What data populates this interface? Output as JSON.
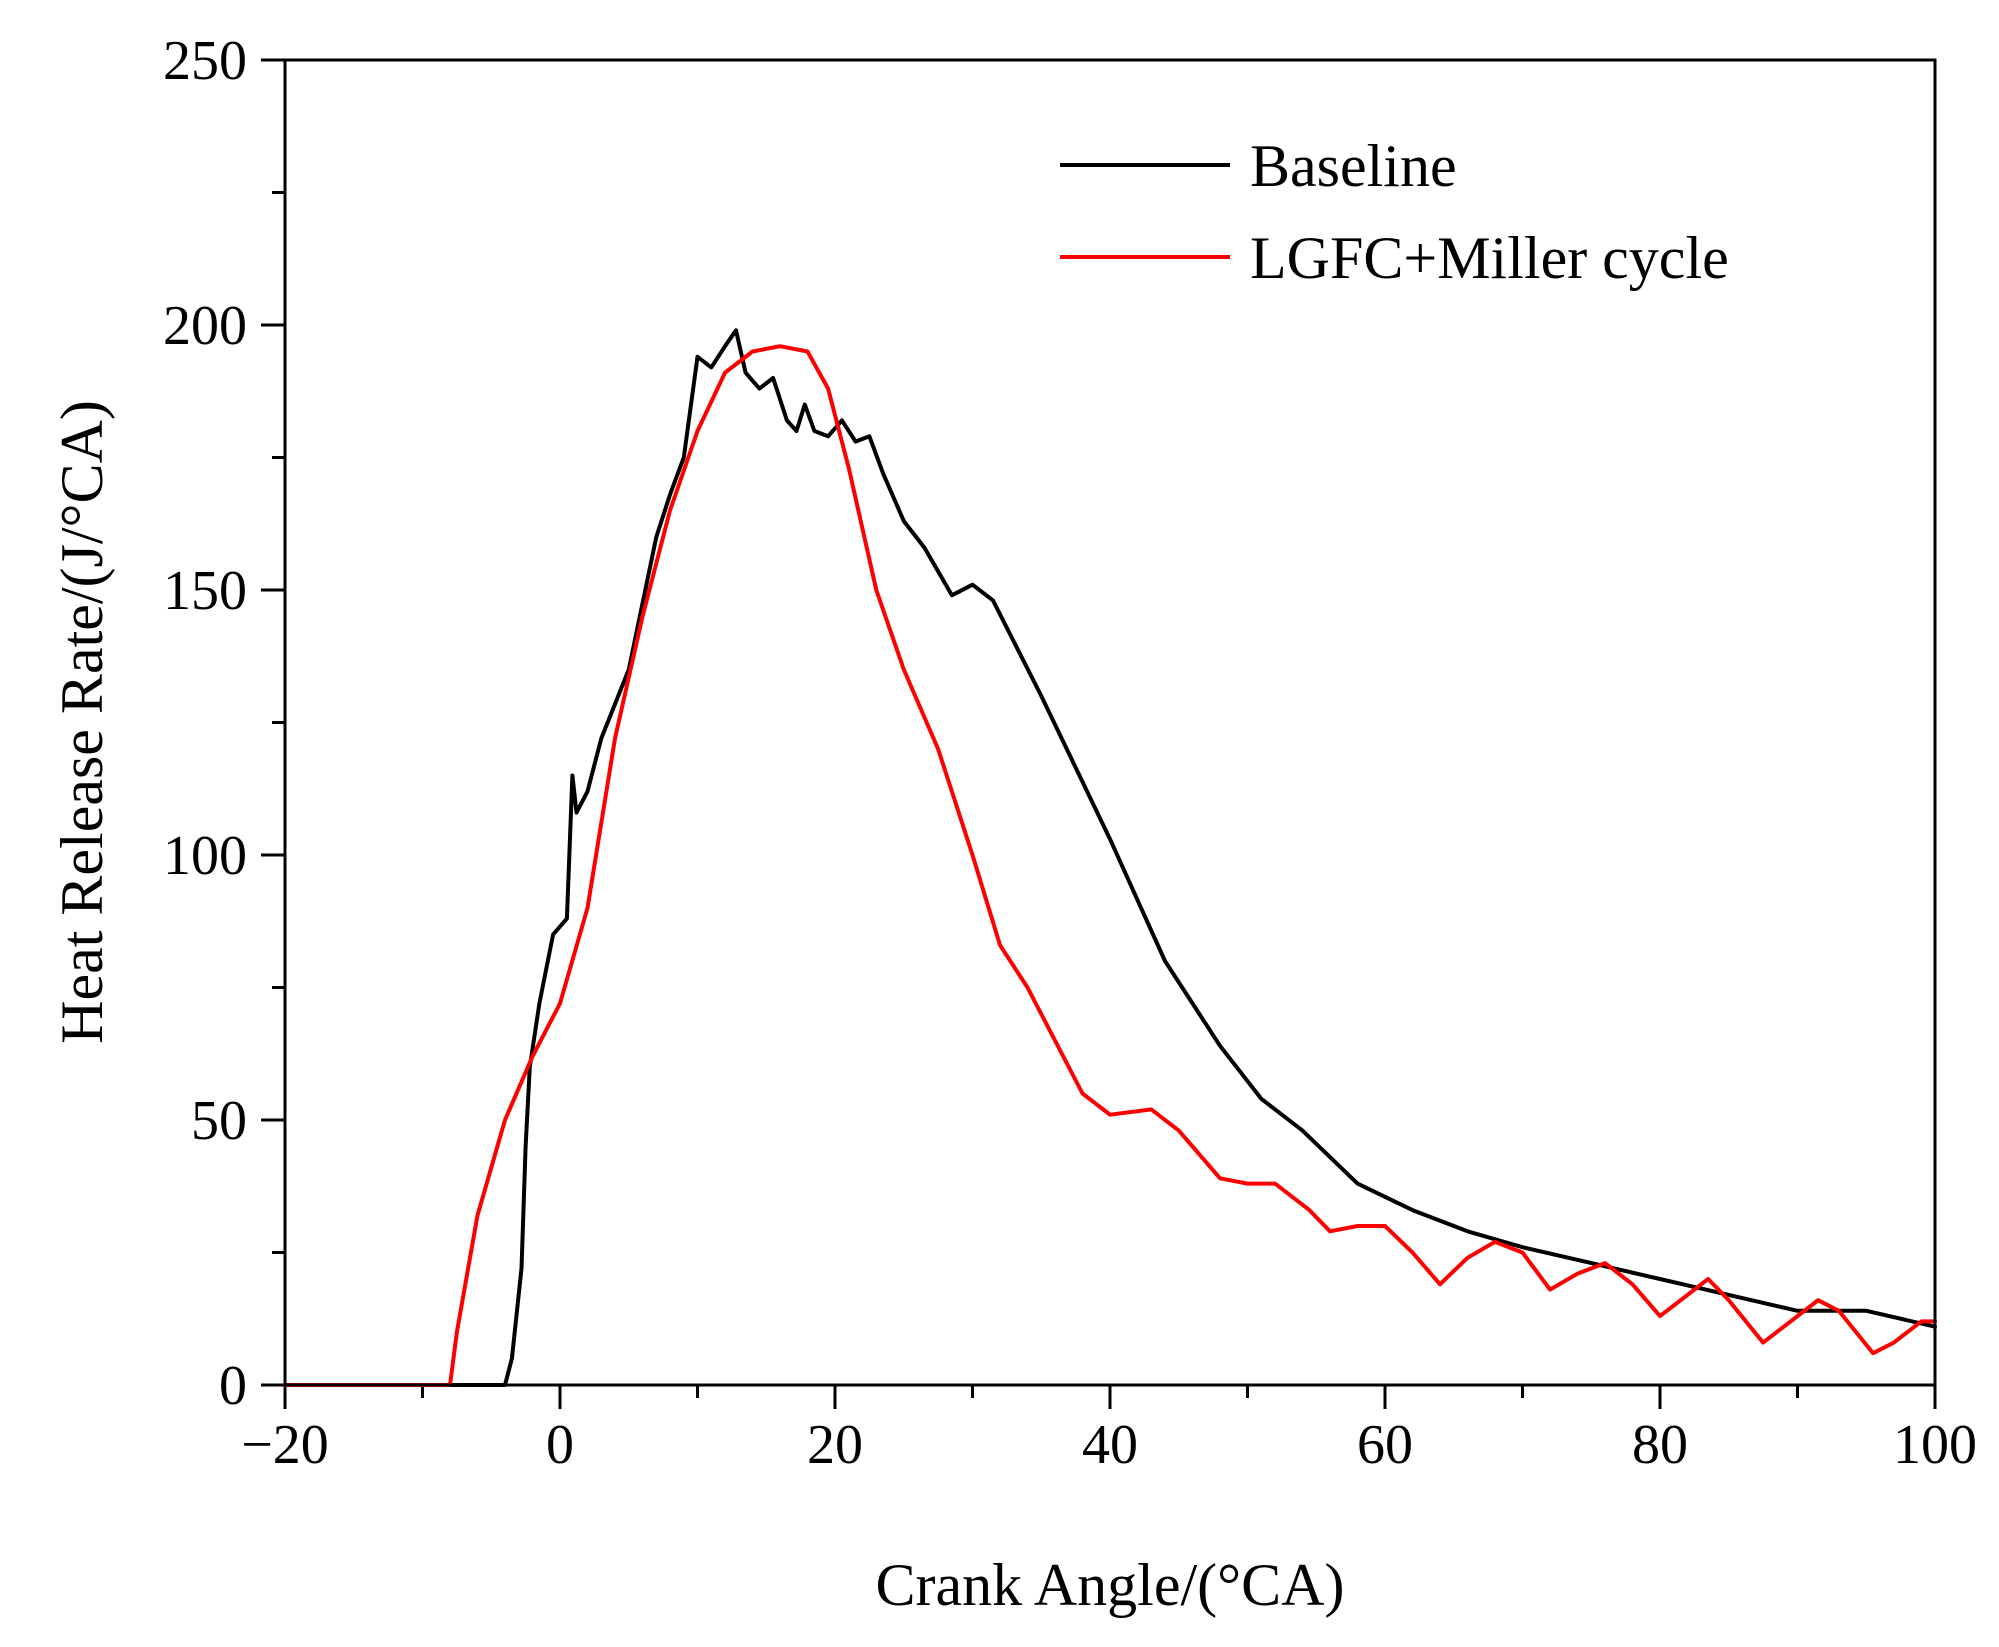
{
  "chart_data": {
    "type": "line",
    "title": "",
    "xlabel": "Crank Angle/(°CA)",
    "ylabel": "Heat Release Rate/(J/°CA)",
    "xlim": [
      -20,
      100
    ],
    "ylim": [
      0,
      250
    ],
    "x_major_ticks": [
      -20,
      0,
      20,
      40,
      60,
      80,
      100
    ],
    "x_tick_labels": [
      "−20",
      "0",
      "20",
      "40",
      "60",
      "80",
      "100"
    ],
    "y_major_ticks": [
      0,
      50,
      100,
      150,
      200,
      250
    ],
    "y_tick_labels": [
      "0",
      "50",
      "100",
      "150",
      "200",
      "250"
    ],
    "grid": false,
    "legend_position": "top-right",
    "series": [
      {
        "name": "Baseline",
        "color": "#000000",
        "points": [
          [
            -20,
            0
          ],
          [
            -14,
            0
          ],
          [
            -4,
            0
          ],
          [
            -3.5,
            5
          ],
          [
            -2.8,
            22
          ],
          [
            -2.5,
            45
          ],
          [
            -2.2,
            60
          ],
          [
            -1.5,
            72
          ],
          [
            -0.5,
            85
          ],
          [
            0.5,
            88
          ],
          [
            0.9,
            115
          ],
          [
            1.2,
            108
          ],
          [
            2,
            112
          ],
          [
            3,
            122
          ],
          [
            5,
            135
          ],
          [
            7,
            160
          ],
          [
            8,
            168
          ],
          [
            9,
            175
          ],
          [
            10,
            194
          ],
          [
            11,
            192
          ],
          [
            12,
            196
          ],
          [
            12.8,
            199
          ],
          [
            13.5,
            191
          ],
          [
            14.5,
            188
          ],
          [
            15.5,
            190
          ],
          [
            16.5,
            182
          ],
          [
            17.2,
            180
          ],
          [
            17.8,
            185
          ],
          [
            18.5,
            180
          ],
          [
            19.5,
            179
          ],
          [
            20.5,
            182
          ],
          [
            21.5,
            178
          ],
          [
            22.5,
            179
          ],
          [
            23.5,
            172
          ],
          [
            25,
            163
          ],
          [
            26.5,
            158
          ],
          [
            28.5,
            149
          ],
          [
            30,
            151
          ],
          [
            31.5,
            148
          ],
          [
            35,
            130
          ],
          [
            40,
            103
          ],
          [
            44,
            80
          ],
          [
            48,
            64
          ],
          [
            51,
            54
          ],
          [
            54,
            48
          ],
          [
            58,
            38
          ],
          [
            62,
            33
          ],
          [
            66,
            29
          ],
          [
            70,
            26
          ],
          [
            75,
            23
          ],
          [
            80,
            20
          ],
          [
            85,
            17
          ],
          [
            90,
            14
          ],
          [
            95,
            14
          ],
          [
            100,
            11
          ]
        ]
      },
      {
        "name": "LGFC+Miller cycle",
        "color": "#ff0000",
        "points": [
          [
            -20,
            0
          ],
          [
            -8,
            0
          ],
          [
            -7.5,
            10
          ],
          [
            -6,
            32
          ],
          [
            -4,
            50
          ],
          [
            -2,
            62
          ],
          [
            0,
            72
          ],
          [
            2,
            90
          ],
          [
            4,
            122
          ],
          [
            6,
            145
          ],
          [
            8,
            165
          ],
          [
            10,
            180
          ],
          [
            12,
            191
          ],
          [
            14,
            195
          ],
          [
            16,
            196
          ],
          [
            18,
            195
          ],
          [
            19.5,
            188
          ],
          [
            21,
            173
          ],
          [
            23,
            150
          ],
          [
            25,
            135
          ],
          [
            27.5,
            120
          ],
          [
            30,
            100
          ],
          [
            32,
            83
          ],
          [
            34,
            75
          ],
          [
            36,
            65
          ],
          [
            38,
            55
          ],
          [
            40,
            51
          ],
          [
            43,
            52
          ],
          [
            45,
            48
          ],
          [
            48,
            39
          ],
          [
            50,
            38
          ],
          [
            52,
            38
          ],
          [
            54.5,
            33
          ],
          [
            56,
            29
          ],
          [
            58,
            30
          ],
          [
            60,
            30
          ],
          [
            62,
            25
          ],
          [
            64,
            19
          ],
          [
            66,
            24
          ],
          [
            68,
            27
          ],
          [
            70,
            25
          ],
          [
            72,
            18
          ],
          [
            74,
            21
          ],
          [
            76,
            23
          ],
          [
            78,
            19
          ],
          [
            80,
            13
          ],
          [
            82,
            17
          ],
          [
            83.5,
            20
          ],
          [
            85,
            16
          ],
          [
            87.5,
            8
          ],
          [
            89,
            11
          ],
          [
            91.5,
            16
          ],
          [
            93,
            14
          ],
          [
            95.5,
            6
          ],
          [
            97,
            8
          ],
          [
            99,
            12
          ],
          [
            100,
            12
          ]
        ]
      }
    ]
  }
}
